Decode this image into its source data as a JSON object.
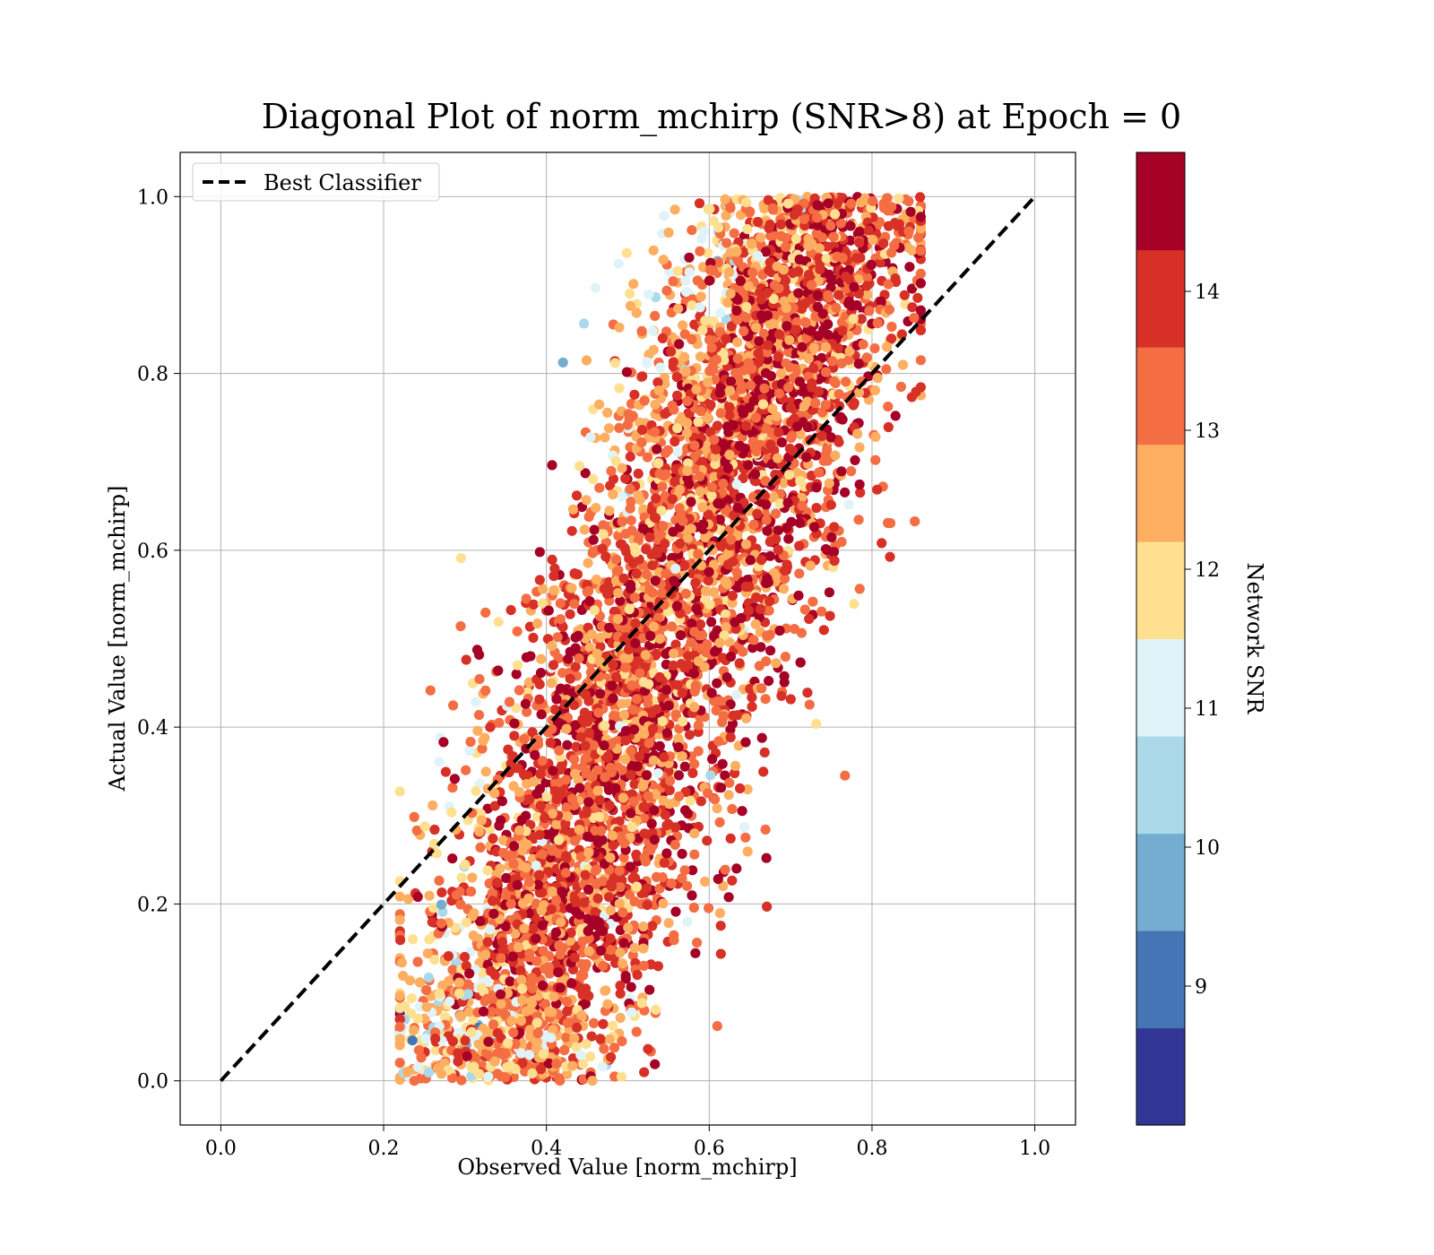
{
  "chart_data": {
    "type": "scatter",
    "title": "Diagonal Plot of norm_mchirp (SNR>8) at Epoch = 0",
    "xlabel": "Observed Value [norm_mchirp]",
    "ylabel": "Actual Value [norm_mchirp]",
    "xlim": [
      -0.05,
      1.05
    ],
    "ylim": [
      -0.05,
      1.05
    ],
    "xticks": [
      "0.0",
      "0.2",
      "0.4",
      "0.6",
      "0.8",
      "1.0"
    ],
    "yticks": [
      "0.0",
      "0.2",
      "0.4",
      "0.6",
      "0.8",
      "1.0"
    ],
    "grid": true,
    "legend": {
      "placement": "upper-left",
      "entries": [
        {
          "label": "Best Classifier",
          "style": "dashed",
          "color": "#000000"
        }
      ]
    },
    "reference_line": {
      "name": "Best Classifier",
      "x": [
        0.0,
        1.0
      ],
      "y": [
        0.0,
        1.0
      ]
    },
    "colorbar": {
      "label": "Network SNR",
      "min": 8,
      "max": 15,
      "ticks": [
        "9",
        "10",
        "11",
        "12",
        "13",
        "14"
      ],
      "colors": [
        "#313695",
        "#4575b4",
        "#74add1",
        "#abd9e9",
        "#e0f3f8",
        "#fee090",
        "#fdae61",
        "#f46d43",
        "#d73027",
        "#a50026"
      ]
    },
    "series": [
      {
        "description": "Scatter of predicted vs. true norm_mchirp, colored by network SNR",
        "x_range": [
          0.22,
          0.86
        ],
        "y_range": [
          0.0,
          1.0
        ],
        "low_snr_region": "upper-left (x 0.3–0.55, y 0.6–1.0)",
        "high_snr_region": "along and right of diagonal"
      }
    ]
  }
}
